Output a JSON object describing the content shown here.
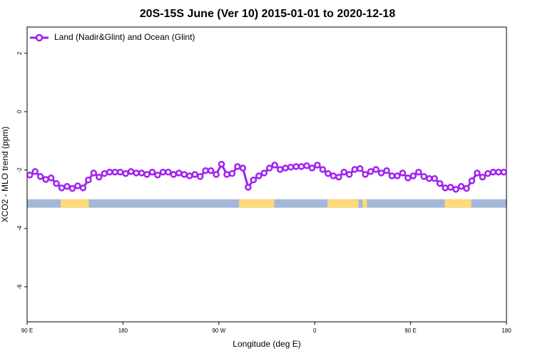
{
  "chart_data": {
    "type": "line",
    "title": "20S-15S June (Ver 10)   2015-01-01 to 2020-12-18",
    "x_label": "Longitude (deg E)",
    "y_label": "XCO2 - MLO trend (ppm)",
    "xlim": [
      90,
      540
    ],
    "ylim": [
      -7.2,
      2.9
    ],
    "xticks": [
      {
        "value": 90,
        "label": "90 E"
      },
      180,
      {
        "value": 270,
        "label": "90 W"
      },
      {
        "value": 360,
        "label": "0"
      },
      {
        "value": 450,
        "label": "90 E"
      },
      {
        "value": 540,
        "label": "180"
      }
    ],
    "yticks": [
      2,
      0,
      -2,
      -4,
      -6
    ],
    "legend": "top-left",
    "x": [
      92.5,
      97.5,
      102.5,
      107.5,
      112.5,
      117.5,
      122.5,
      127.5,
      132.5,
      137.5,
      142.5,
      147.5,
      152.5,
      157.5,
      162.5,
      167.5,
      172.5,
      177.5,
      182.5,
      187.5,
      192.5,
      197.5,
      202.5,
      207.5,
      212.5,
      217.5,
      222.5,
      227.5,
      232.5,
      237.5,
      242.5,
      247.5,
      252.5,
      257.5,
      262.5,
      267.5,
      272.5,
      277.5,
      282.5,
      287.5,
      292.5,
      297.5,
      302.5,
      307.5,
      312.5,
      317.5,
      322.5,
      327.5,
      332.5,
      337.5,
      342.5,
      347.5,
      352.5,
      357.5,
      362.5,
      367.5,
      372.5,
      377.5,
      382.5,
      387.5,
      392.5,
      397.5,
      402.5,
      407.5,
      412.5,
      417.5,
      422.5,
      427.5,
      432.5,
      437.5,
      442.5,
      447.5,
      452.5,
      457.5,
      462.5,
      467.5,
      472.5,
      477.5,
      482.5,
      487.5,
      492.5,
      497.5,
      502.5,
      507.5,
      512.5,
      517.5,
      522.5,
      527.5,
      532.5,
      537.5
    ],
    "series": [
      {
        "name": "Land (Nadir&Glint) and Ocean (Glint)",
        "color": "#a020f0",
        "values": [
          -2.17,
          -2.05,
          -2.22,
          -2.32,
          -2.27,
          -2.46,
          -2.61,
          -2.56,
          -2.63,
          -2.54,
          -2.61,
          -2.34,
          -2.1,
          -2.24,
          -2.12,
          -2.07,
          -2.07,
          -2.07,
          -2.12,
          -2.05,
          -2.1,
          -2.1,
          -2.15,
          -2.07,
          -2.17,
          -2.07,
          -2.07,
          -2.15,
          -2.1,
          -2.15,
          -2.2,
          -2.15,
          -2.22,
          -2.02,
          -2.02,
          -2.15,
          -1.8,
          -2.15,
          -2.12,
          -1.88,
          -1.93,
          -2.59,
          -2.34,
          -2.2,
          -2.1,
          -1.93,
          -1.83,
          -1.98,
          -1.93,
          -1.9,
          -1.88,
          -1.88,
          -1.85,
          -1.93,
          -1.83,
          -1.98,
          -2.12,
          -2.2,
          -2.24,
          -2.07,
          -2.15,
          -1.98,
          -1.95,
          -2.15,
          -2.05,
          -1.98,
          -2.1,
          -2.02,
          -2.2,
          -2.2,
          -2.1,
          -2.27,
          -2.2,
          -2.07,
          -2.22,
          -2.29,
          -2.29,
          -2.46,
          -2.61,
          -2.59,
          -2.66,
          -2.56,
          -2.63,
          -2.37,
          -2.1,
          -2.24,
          -2.12,
          -2.07,
          -2.07,
          -2.07
        ]
      }
    ],
    "surface_band": {
      "ylim": [
        -3.29,
        -3.0
      ],
      "ocean_color": "#a3b8d8",
      "land_color": "#ffd97a",
      "land": [
        [
          121.5,
          148
        ],
        [
          289,
          322
        ],
        [
          372,
          401
        ],
        [
          405,
          409
        ],
        [
          482,
          507
        ]
      ]
    }
  }
}
